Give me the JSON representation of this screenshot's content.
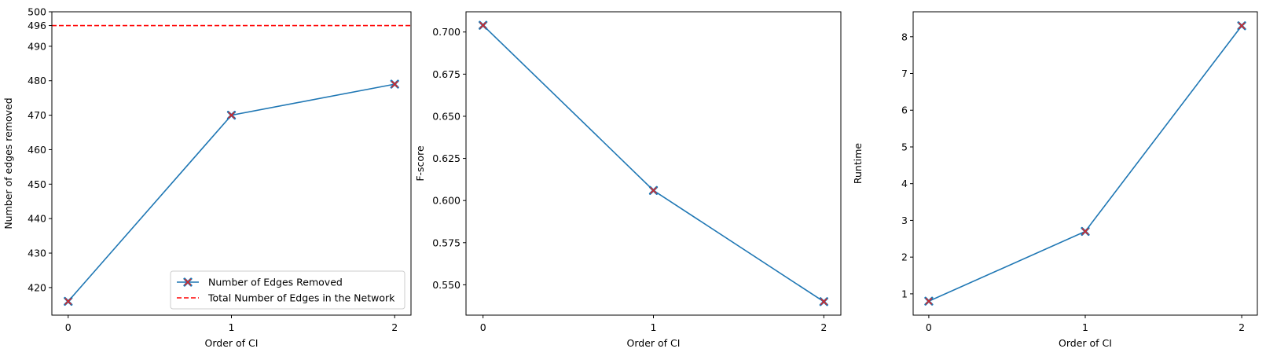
{
  "chart_data": [
    {
      "type": "line",
      "title": "",
      "xlabel": "Order of CI",
      "ylabel": "Number of edges removed",
      "x": [
        0,
        1,
        2
      ],
      "xlim": [
        -0.1,
        2.1
      ],
      "ylim": [
        412,
        500
      ],
      "yticks": [
        420,
        430,
        440,
        450,
        460,
        470,
        480,
        490,
        496,
        500
      ],
      "grid": false,
      "legend_position": "bottom-right",
      "series": [
        {
          "name": "Number of Edges Removed",
          "values": [
            416,
            470,
            479
          ],
          "color": "#1f77b4",
          "marker_color": "#d62728",
          "marker": "X"
        }
      ],
      "reference_lines": [
        {
          "name": "Total Number of Edges in the Network",
          "y": 496,
          "color": "#ff0000",
          "style": "dashed"
        }
      ]
    },
    {
      "type": "line",
      "title": "",
      "xlabel": "Order of CI",
      "ylabel": "F-score",
      "x": [
        0,
        1,
        2
      ],
      "xlim": [
        -0.1,
        2.1
      ],
      "ylim": [
        0.532,
        0.712
      ],
      "yticks": [
        0.55,
        0.575,
        0.6,
        0.625,
        0.65,
        0.675,
        0.7
      ],
      "ytick_decimals": 3,
      "grid": false,
      "series": [
        {
          "values": [
            0.704,
            0.606,
            0.54
          ],
          "color": "#1f77b4",
          "marker_color": "#d62728",
          "marker": "X"
        }
      ]
    },
    {
      "type": "line",
      "title": "",
      "xlabel": "Order of CI",
      "ylabel": "Runtime",
      "x": [
        0,
        1,
        2
      ],
      "xlim": [
        -0.1,
        2.1
      ],
      "ylim": [
        0.42,
        8.68
      ],
      "yticks": [
        1,
        2,
        3,
        4,
        5,
        6,
        7,
        8
      ],
      "grid": false,
      "series": [
        {
          "values": [
            0.8,
            2.7,
            8.3
          ],
          "color": "#1f77b4",
          "marker_color": "#d62728",
          "marker": "X"
        }
      ]
    }
  ]
}
